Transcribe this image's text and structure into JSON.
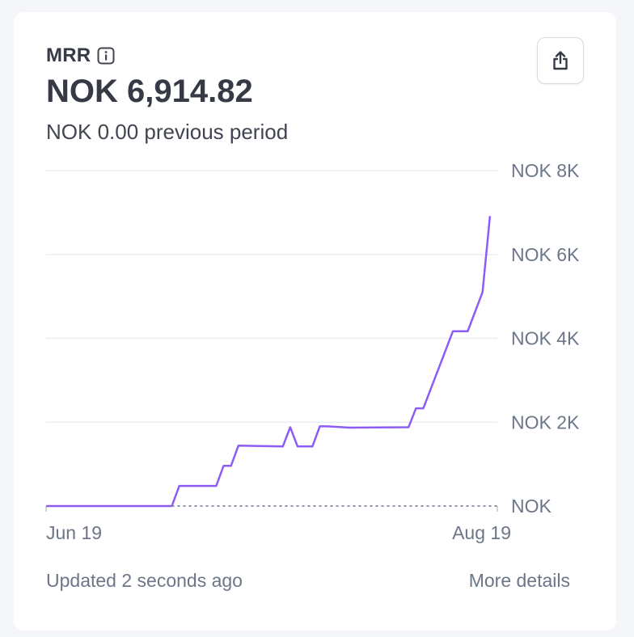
{
  "card": {
    "title": "MRR",
    "info_icon": "info-icon",
    "value": "NOK 6,914.82",
    "previous": "NOK 0.00 previous period",
    "share_icon": "share-icon",
    "updated": "Updated 2 seconds ago",
    "more_details": "More details"
  },
  "colors": {
    "line": "#8b5cf6",
    "grid": "#ebeef1",
    "baseline": "#8a94a6"
  },
  "chart_data": {
    "type": "line",
    "title": "",
    "xlabel": "",
    "ylabel": "",
    "ylim": [
      0,
      8000
    ],
    "y_ticks": [
      {
        "value": 8000,
        "label": "NOK 8K"
      },
      {
        "value": 6000,
        "label": "NOK 6K"
      },
      {
        "value": 4000,
        "label": "NOK 4K"
      },
      {
        "value": 2000,
        "label": "NOK 2K"
      },
      {
        "value": 0,
        "label": "NOK"
      }
    ],
    "x_ticks": [
      {
        "value": 0,
        "label": "Jun 19"
      },
      {
        "value": 61,
        "label": "Aug 19"
      }
    ],
    "xlim": [
      0,
      61
    ],
    "grid": true,
    "series": [
      {
        "style": "solid",
        "points": [
          [
            0,
            0
          ],
          [
            17,
            0
          ],
          [
            18,
            480
          ],
          [
            23,
            480
          ],
          [
            24,
            960
          ],
          [
            25,
            960
          ],
          [
            26,
            1440
          ],
          [
            32,
            1420
          ],
          [
            33,
            1880
          ],
          [
            34,
            1420
          ],
          [
            36,
            1420
          ],
          [
            37,
            1900
          ],
          [
            38,
            1900
          ],
          [
            41,
            1870
          ],
          [
            49,
            1880
          ],
          [
            50,
            2330
          ],
          [
            51,
            2330
          ],
          [
            55,
            4170
          ],
          [
            57,
            4170
          ],
          [
            59,
            5100
          ],
          [
            60,
            6914.82
          ]
        ]
      },
      {
        "style": "dashed",
        "points": [
          [
            17,
            0
          ],
          [
            61,
            0
          ]
        ]
      }
    ]
  }
}
